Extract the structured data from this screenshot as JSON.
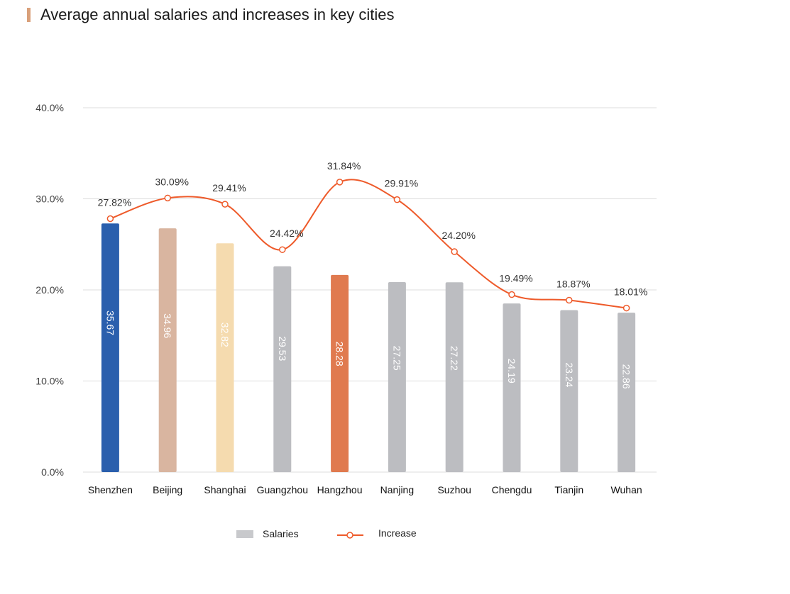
{
  "title": "Average annual salaries and increases in key cities",
  "chart_data": {
    "type": "bar",
    "title": "Average annual salaries and increases in key cities",
    "xlabel": "",
    "ylabel": "",
    "ylim": [
      0,
      40
    ],
    "yticks": [
      "0.0%",
      "10.0%",
      "20.0%",
      "30.0%",
      "40.0%"
    ],
    "grid": true,
    "legend_position": "bottom",
    "categories": [
      "Shenzhen",
      "Beijing",
      "Shanghai",
      "Guangzhou",
      "Hangzhou",
      "Nanjing",
      "Suzhou",
      "Chengdu",
      "Tianjin",
      "Wuhan"
    ],
    "series": [
      {
        "name": "Salaries",
        "type": "bar",
        "values": [
          35.67,
          34.96,
          32.82,
          29.53,
          28.28,
          27.25,
          27.22,
          24.19,
          23.24,
          22.86
        ],
        "labels": [
          "35.67",
          "34.96",
          "32.82",
          "29.53",
          "28.28",
          "27.25",
          "27.22",
          "24.19",
          "23.24",
          "22.86"
        ],
        "colors": [
          "#2a5fad",
          "#d9b5a0",
          "#f5dbaf",
          "#bcbdc1",
          "#e07a4f",
          "#bcbdc1",
          "#bcbdc1",
          "#bcbdc1",
          "#bcbdc1",
          "#bcbdc1"
        ],
        "legend_color": "#c8c9cc"
      },
      {
        "name": "Increase",
        "type": "line",
        "values": [
          27.82,
          30.09,
          29.41,
          24.42,
          31.84,
          29.91,
          24.2,
          19.49,
          18.87,
          18.01
        ],
        "labels": [
          "27.82%",
          "30.09%",
          "29.41%",
          "24.42%",
          "31.84%",
          "29.91%",
          "24.20%",
          "19.49%",
          "18.87%",
          "18.01%"
        ],
        "color": "#ee5a2a"
      }
    ]
  }
}
